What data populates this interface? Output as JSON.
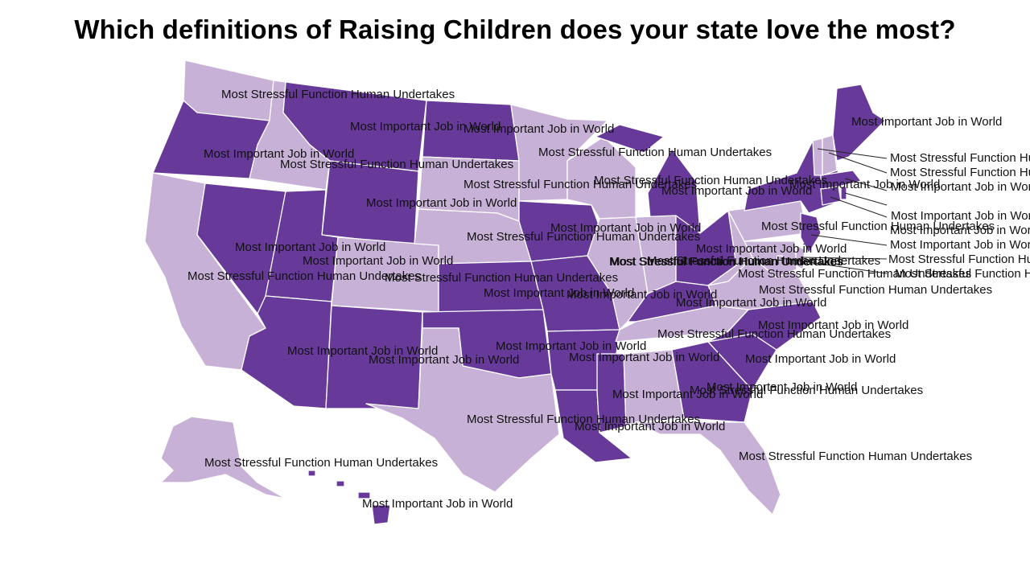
{
  "title": "Which definitions of Raising Children does your state love the most?",
  "colors": {
    "Most Important Job in World": "#673a9a",
    "Most Stressful Function Human Undertakes": "#c8b1d6"
  },
  "states": [
    {
      "code": "WA",
      "label": "Most Stressful Function Human Undertakes"
    },
    {
      "code": "OR",
      "label": "Most Important Job in World"
    },
    {
      "code": "CA",
      "label": "Most Stressful Function Human Undertakes"
    },
    {
      "code": "ID",
      "label": "Most Stressful Function Human Undertakes"
    },
    {
      "code": "NV",
      "label": "Most Important Job in World"
    },
    {
      "code": "MT",
      "label": "Most Important Job in World"
    },
    {
      "code": "WY",
      "label": "Most Important Job in World"
    },
    {
      "code": "UT",
      "label": "Most Important Job in World"
    },
    {
      "code": "AZ",
      "label": "Most Important Job in World"
    },
    {
      "code": "CO",
      "label": "Most Stressful Function Human Undertakes"
    },
    {
      "code": "NM",
      "label": "Most Important Job in World"
    },
    {
      "code": "ND",
      "label": "Most Important Job in World"
    },
    {
      "code": "SD",
      "label": "Most Stressful Function Human Undertakes"
    },
    {
      "code": "NE",
      "label": "Most Stressful Function Human Undertakes"
    },
    {
      "code": "KS",
      "label": "Most Important Job in World"
    },
    {
      "code": "OK",
      "label": "Most Important Job in World"
    },
    {
      "code": "TX",
      "label": "Most Stressful Function Human Undertakes"
    },
    {
      "code": "MN",
      "label": "Most Stressful Function Human Undertakes"
    },
    {
      "code": "IA",
      "label": "Most Important Job in World"
    },
    {
      "code": "MO",
      "label": "Most Important Job in World"
    },
    {
      "code": "AR",
      "label": "Most Important Job in World"
    },
    {
      "code": "LA",
      "label": "Most Important Job in World"
    },
    {
      "code": "WI",
      "label": "Most Stressful Function Human Undertakes"
    },
    {
      "code": "IL",
      "label": "Most Stressful Function Human Undertakes"
    },
    {
      "code": "MI",
      "label": "Most Important Job in World"
    },
    {
      "code": "IN",
      "label": "Most Stressful Function Human Undertakes"
    },
    {
      "code": "OH",
      "label": "Most Important Job in World"
    },
    {
      "code": "KY",
      "label": "Most Important Job in World"
    },
    {
      "code": "TN",
      "label": "Most Stressful Function Human Undertakes"
    },
    {
      "code": "MS",
      "label": "Most Important Job in World"
    },
    {
      "code": "AL",
      "label": "Most Stressful Function Human Undertakes"
    },
    {
      "code": "GA",
      "label": "Most Important Job in World"
    },
    {
      "code": "FL",
      "label": "Most Stressful Function Human Undertakes"
    },
    {
      "code": "SC",
      "label": "Most Important Job in World"
    },
    {
      "code": "NC",
      "label": "Most Important Job in World"
    },
    {
      "code": "VA",
      "label": "Most Stressful Function Human Undertakes"
    },
    {
      "code": "WV",
      "label": "Most Stressful Function Human Undertakes"
    },
    {
      "code": "PA",
      "label": "Most Stressful Function Human Undertakes"
    },
    {
      "code": "NY",
      "label": "Most Important Job in World"
    },
    {
      "code": "NJ",
      "label": "Most Important Job in World"
    },
    {
      "code": "DE",
      "label": "Most Stressful Function Human Undertakes"
    },
    {
      "code": "MD",
      "label": "Most Stressful Function Human Undertakes"
    },
    {
      "code": "DC",
      "label": "Most Stressful Function Human Undertakes"
    },
    {
      "code": "CT",
      "label": "Most Important Job in World"
    },
    {
      "code": "RI",
      "label": "Most Important Job in World"
    },
    {
      "code": "MA",
      "label": "Most Important Job in World"
    },
    {
      "code": "VT",
      "label": "Most Stressful Function Human Undertakes"
    },
    {
      "code": "NH",
      "label": "Most Stressful Function Human Undertakes"
    },
    {
      "code": "ME",
      "label": "Most Important Job in World"
    },
    {
      "code": "AK",
      "label": "Most Stressful Function Human Undertakes"
    },
    {
      "code": "HI",
      "label": "Most Important Job in World"
    }
  ]
}
